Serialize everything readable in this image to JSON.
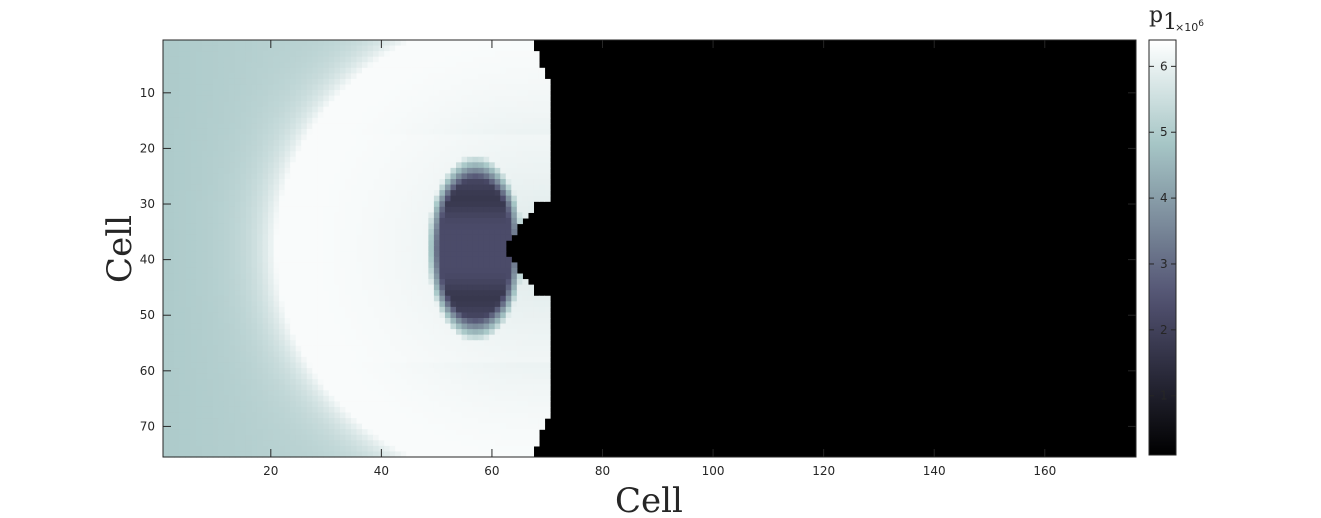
{
  "chart_data": {
    "type": "heatmap",
    "title": "",
    "xlabel": "Cell",
    "ylabel": "Cell",
    "grid": false,
    "xlim": [
      0.5,
      176.5
    ],
    "ylim": [
      0.5,
      75.5
    ],
    "y_reversed": true,
    "x_ticks": [
      20,
      40,
      60,
      80,
      100,
      120,
      140,
      160
    ],
    "y_ticks": [
      10,
      20,
      30,
      40,
      50,
      60,
      70
    ],
    "grid_size": {
      "columns": 176,
      "rows": 75
    },
    "colormap": "bone",
    "colorbar": {
      "label": "p",
      "label_subscript": "1",
      "multiplier": "×10",
      "multiplier_exponent": "6",
      "range": [
        0.1,
        6.4
      ],
      "ticks": [
        1,
        2,
        3,
        4,
        5,
        6
      ]
    },
    "field_description": {
      "background_value": 0.1,
      "ambient_value": 5.1,
      "peak_value": 6.3,
      "shock_front_x": 70,
      "shock_center_y": 38,
      "arc_radius": 48,
      "cavity": {
        "center_x": 57,
        "center_y": 38,
        "value": 2.3
      },
      "indent_apex_x": 62
    }
  }
}
